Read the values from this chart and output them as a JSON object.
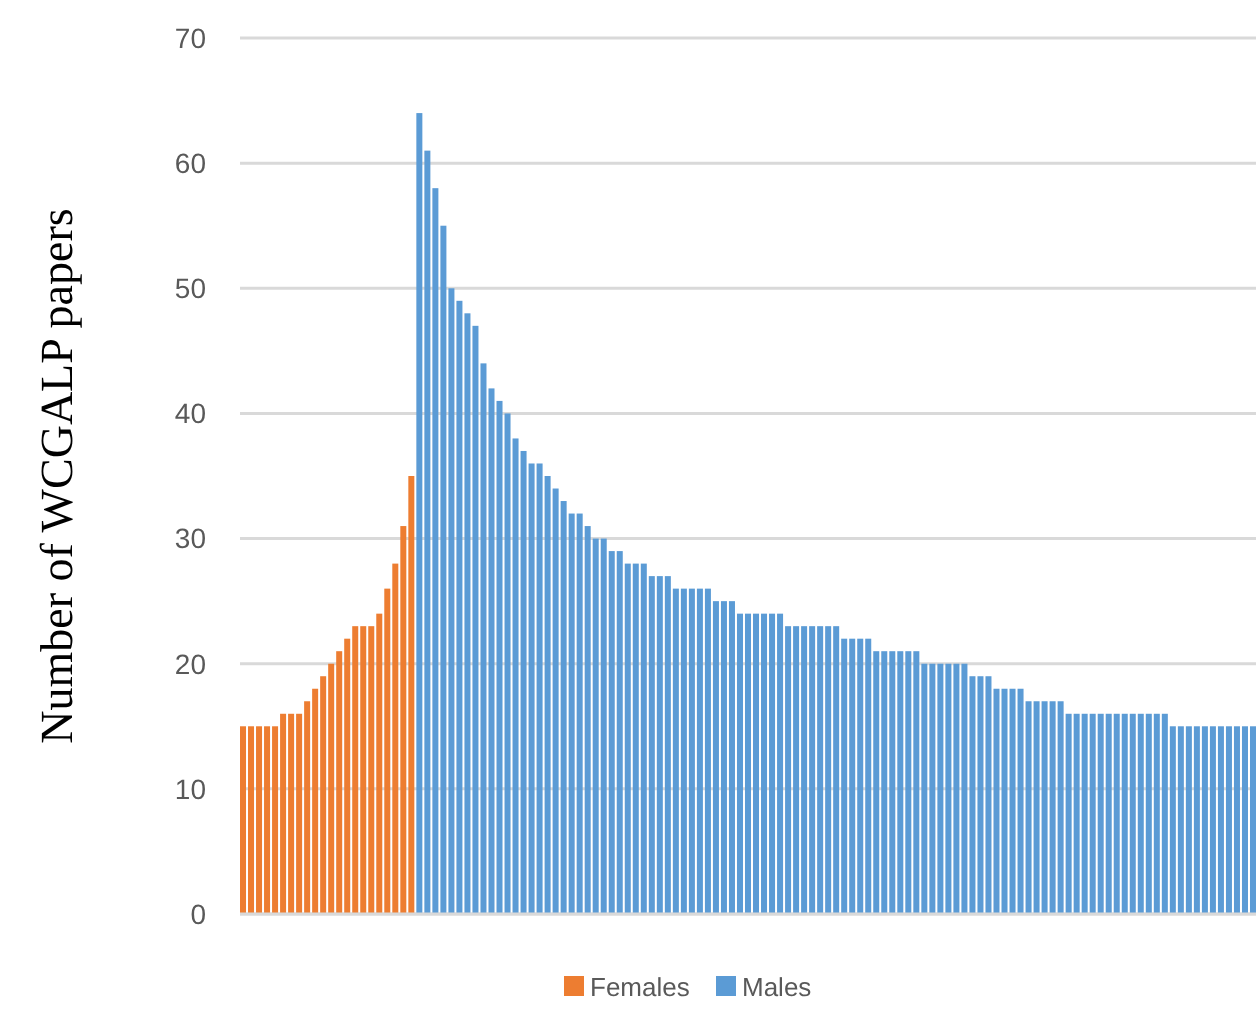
{
  "chart_data": {
    "type": "bar",
    "ylabel": "Number of WCGALP papers",
    "categories": [
      null,
      null,
      null,
      null,
      null,
      null,
      null,
      null,
      null,
      null,
      null,
      null,
      null,
      null,
      null,
      null,
      null,
      null,
      null,
      null,
      null,
      null,
      null,
      null,
      null,
      null,
      null,
      null,
      null,
      null,
      null,
      null,
      null,
      null,
      null,
      null,
      null,
      null,
      null,
      null,
      null,
      null,
      null,
      null,
      null,
      null,
      null,
      null,
      null,
      null,
      null,
      null,
      null,
      null,
      null,
      null,
      null,
      null,
      null,
      null,
      null,
      null,
      null,
      null,
      null,
      null,
      null,
      null,
      null,
      null,
      null,
      null,
      null,
      null,
      null,
      null,
      null,
      null,
      null,
      null,
      null,
      null,
      null,
      null,
      null,
      null,
      null,
      null,
      null,
      null,
      null,
      null,
      null,
      null,
      null,
      null,
      null,
      null,
      null,
      null,
      null,
      null,
      null,
      null,
      null,
      null,
      null,
      null,
      null,
      null,
      null,
      null,
      null,
      null,
      null,
      null,
      null,
      null,
      null,
      null,
      null,
      null,
      null,
      null,
      null,
      null,
      null
    ],
    "series": [
      {
        "name": "Females",
        "color": "#ed7d31",
        "values": [
          15,
          15,
          15,
          15,
          15,
          16,
          16,
          16,
          17,
          18,
          19,
          20,
          21,
          22,
          23,
          23,
          23,
          24,
          26,
          28,
          31,
          35,
          null,
          null,
          null,
          null,
          null,
          null,
          null,
          null,
          null,
          null,
          null,
          null,
          null,
          null,
          null,
          null,
          null,
          null,
          null,
          null,
          null,
          null,
          null,
          null,
          null,
          null,
          null,
          null,
          null,
          null,
          null,
          null,
          null,
          null,
          null,
          null,
          null,
          null,
          null,
          null,
          null,
          null,
          null,
          null,
          null,
          null,
          null,
          null,
          null,
          null,
          null,
          null,
          null,
          null,
          null,
          null,
          null,
          null,
          null,
          null,
          null,
          null,
          null,
          null,
          null,
          null,
          null,
          null,
          null,
          null,
          null,
          null,
          null,
          null,
          null,
          null,
          null,
          null,
          null,
          null,
          null,
          null,
          null,
          null,
          null,
          null,
          null,
          null,
          null,
          null,
          null,
          null,
          null,
          null,
          null,
          null,
          null,
          null,
          null,
          null,
          null,
          null,
          null,
          null,
          null
        ]
      },
      {
        "name": "Males",
        "color": "#5b9bd5",
        "values": [
          null,
          null,
          null,
          null,
          null,
          null,
          null,
          null,
          null,
          null,
          null,
          null,
          null,
          null,
          null,
          null,
          null,
          null,
          null,
          null,
          null,
          null,
          64,
          61,
          58,
          55,
          50,
          49,
          48,
          47,
          44,
          42,
          41,
          40,
          38,
          37,
          36,
          36,
          35,
          34,
          33,
          32,
          32,
          31,
          30,
          30,
          29,
          29,
          28,
          28,
          28,
          27,
          27,
          27,
          26,
          26,
          26,
          26,
          26,
          25,
          25,
          25,
          24,
          24,
          24,
          24,
          24,
          24,
          23,
          23,
          23,
          23,
          23,
          23,
          23,
          22,
          22,
          22,
          22,
          21,
          21,
          21,
          21,
          21,
          21,
          20,
          20,
          20,
          20,
          20,
          20,
          19,
          19,
          19,
          18,
          18,
          18,
          18,
          17,
          17,
          17,
          17,
          17,
          16,
          16,
          16,
          16,
          16,
          16,
          16,
          16,
          16,
          16,
          16,
          16,
          16,
          15,
          15,
          15,
          15,
          15,
          15,
          15,
          15,
          15,
          15,
          15
        ]
      }
    ],
    "ylim": [
      0,
      70
    ],
    "yticks": [
      0,
      10,
      20,
      30,
      40,
      50,
      60,
      70
    ],
    "grid": "y",
    "legend": "bottom"
  }
}
